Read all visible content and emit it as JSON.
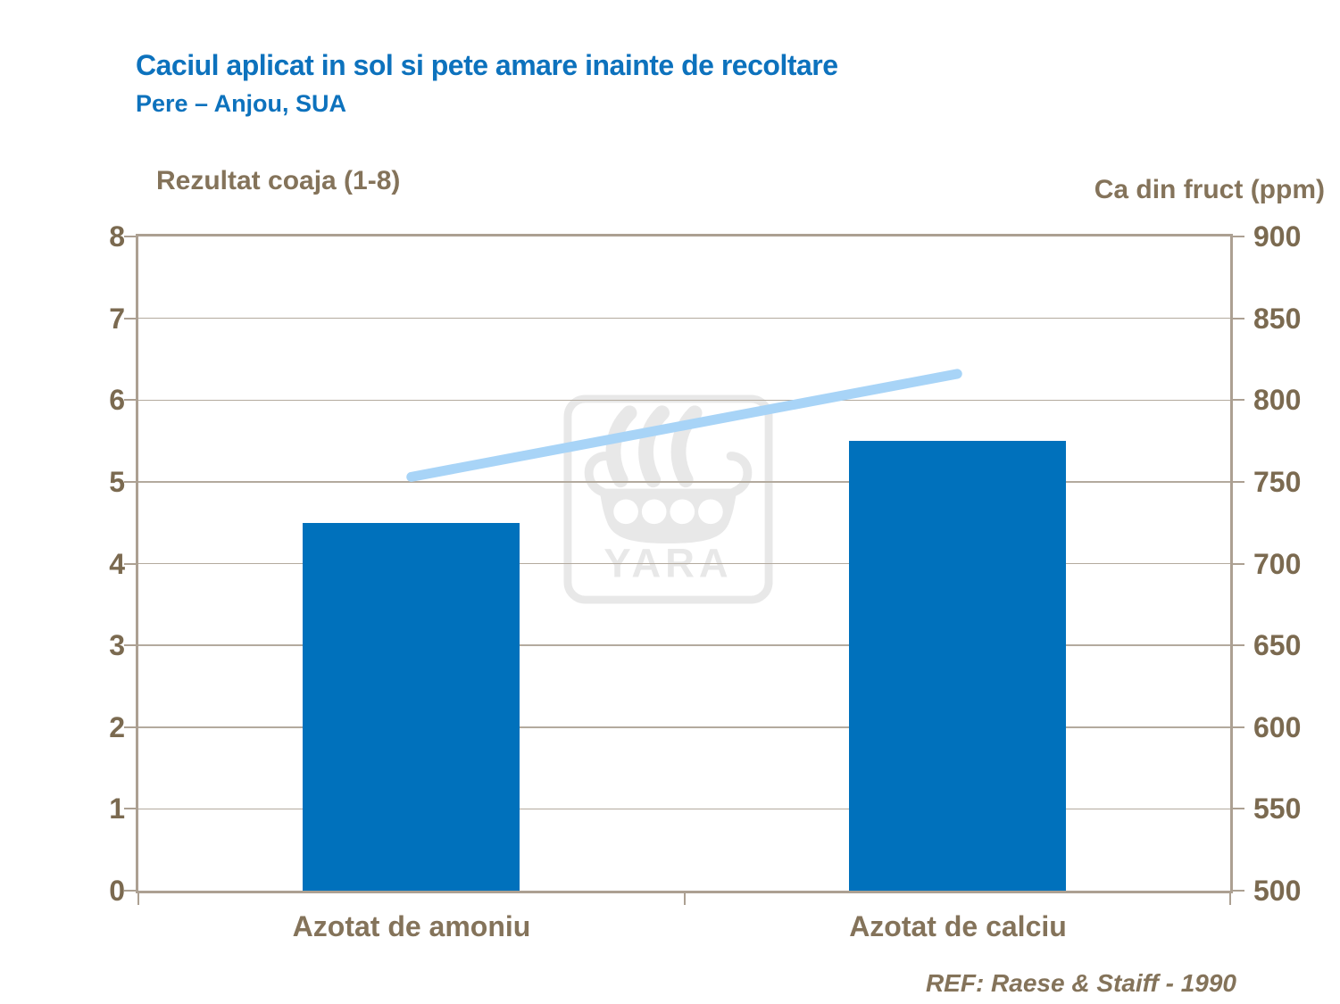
{
  "slide": {
    "title": "Caciul aplicat in sol si pete amare inainte de recoltare",
    "subtitle": "Pere – Anjou, SUA",
    "reference": "REF: Raese & Staiff - 1990",
    "watermark_text": "YARA"
  },
  "chart_data": {
    "type": "bar",
    "categories": [
      "Azotat de amoniu",
      "Azotat de calciu"
    ],
    "series": [
      {
        "name": "Rezultat coaja",
        "type": "bar",
        "axis": "left",
        "values": [
          4.5,
          5.5
        ],
        "color": "#0071bc"
      },
      {
        "name": "Ca din fruct",
        "type": "line",
        "axis": "right",
        "values": [
          753,
          816
        ],
        "color": "#a8d4f7"
      }
    ],
    "left_axis": {
      "label": "Rezultat coaja (1-8)",
      "range": [
        0,
        8
      ],
      "ticks": [
        "8",
        "7",
        "6",
        "5",
        "4",
        "3",
        "2",
        "1",
        "0"
      ]
    },
    "right_axis": {
      "label": "Ca din fruct (ppm)",
      "range": [
        500,
        900
      ],
      "ticks": [
        "900",
        "850",
        "800",
        "750",
        "700",
        "650",
        "600",
        "550",
        "500"
      ]
    },
    "grid": true,
    "legend_position": "none"
  },
  "colors": {
    "accent_blue": "#0071bc",
    "title_blue": "#0d72bd",
    "text_brown": "#84735a",
    "tick_brown": "#7b6a50",
    "grid": "#b3aa9e",
    "frame": "#aca092",
    "line_blue": "#a8d4f7",
    "watermark": "#e8e8e8"
  }
}
